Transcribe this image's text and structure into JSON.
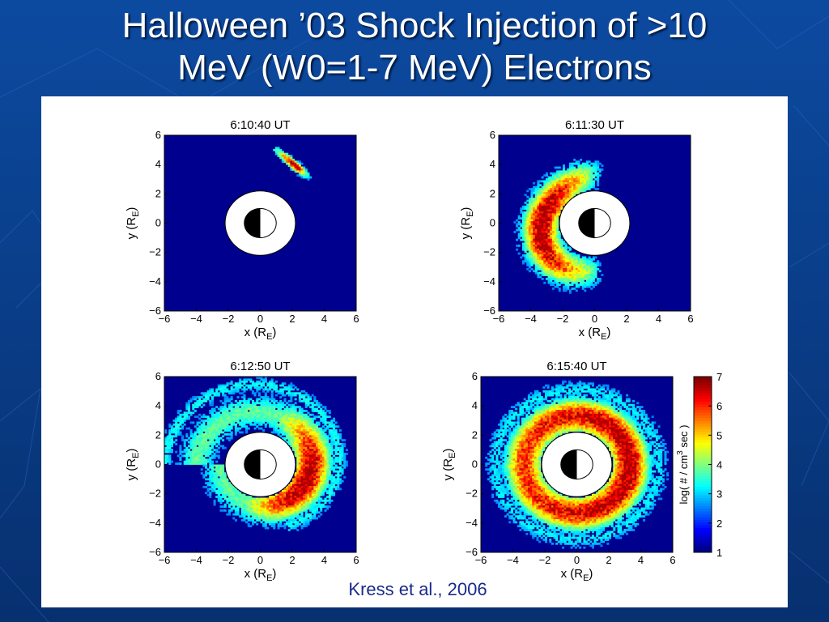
{
  "slide": {
    "title_line1": "Halloween ’03 Shock Injection of >10",
    "title_line2": "MeV (W0=1-7 MeV) Electrons",
    "citation": "Kress et al., 2006"
  },
  "colors": {
    "slide_background": "#0a3f8c",
    "plot_background": "#00008f",
    "title_text": "#ffffff",
    "citation_text": "#1a2a8c"
  },
  "chart_data": [
    {
      "type": "heatmap",
      "title": "6:10:40 UT",
      "xlabel": "x (R_E)",
      "ylabel": "y (R_E)",
      "xlim": [
        -6,
        6
      ],
      "ylim": [
        -6,
        6
      ],
      "xticks": [
        "−6",
        "−4",
        "−2",
        "0",
        "2",
        "4",
        "6"
      ],
      "yticks": [
        "6",
        "4",
        "2",
        "0",
        "−2",
        "−4",
        "−6"
      ],
      "earth_marker": {
        "inner_radius": 1,
        "exclusion_radius": 2.2,
        "note": "Earth disk half dark, white exclusion region"
      },
      "distribution": [
        {
          "x": 2.3,
          "y": 3.9,
          "angle_deg": 40,
          "radius": 1.1,
          "width": 0.35,
          "peak": 5.6
        }
      ]
    },
    {
      "type": "heatmap",
      "title": "6:11:30 UT",
      "xlabel": "x (R_E)",
      "ylabel": "y (R_E)",
      "xlim": [
        -6,
        6
      ],
      "ylim": [
        -6,
        6
      ],
      "xticks": [
        "−6",
        "−4",
        "−2",
        "0",
        "2",
        "4",
        "6"
      ],
      "yticks": [
        "6",
        "4",
        "2",
        "0",
        "−2",
        "−4",
        "−6"
      ],
      "earth_marker": {
        "inner_radius": 1,
        "exclusion_radius": 2.2
      },
      "distribution": [
        {
          "type": "crescent",
          "center_angle_deg": 180,
          "span_deg": 200,
          "radius": 3.4,
          "peak": 6.4
        }
      ]
    },
    {
      "type": "heatmap",
      "title": "6:12:50 UT",
      "xlabel": "x (R_E)",
      "ylabel": "y (R_E)",
      "xlim": [
        -6,
        6
      ],
      "ylim": [
        -6,
        6
      ],
      "xticks": [
        "−6",
        "−4",
        "−2",
        "0",
        "2",
        "4",
        "6"
      ],
      "yticks": [
        "6",
        "4",
        "2",
        "0",
        "−2",
        "−4",
        "−6"
      ],
      "earth_marker": {
        "inner_radius": 1,
        "exclusion_radius": 2.2
      },
      "distribution": [
        {
          "type": "spiral-ring",
          "radius": 3.0,
          "peak_angle_deg": -20,
          "peak": 6.6
        }
      ]
    },
    {
      "type": "heatmap",
      "title": "6:15:40 UT",
      "xlabel": "x (R_E)",
      "ylabel": "y (R_E)",
      "xlim": [
        -6,
        6
      ],
      "ylim": [
        -6,
        6
      ],
      "xticks": [
        "−6",
        "−4",
        "−2",
        "0",
        "2",
        "4",
        "6"
      ],
      "yticks": [
        "6",
        "4",
        "2",
        "0",
        "−2",
        "−4",
        "−6"
      ],
      "earth_marker": {
        "inner_radius": 1,
        "exclusion_radius": 2.2
      },
      "distribution": [
        {
          "type": "ring",
          "radius": 3.3,
          "peak": 6.5
        }
      ]
    }
  ],
  "colorbar": {
    "label": "log( # / cm^3 sec )",
    "label_parts": [
      "log( # / cm",
      "3",
      " sec )"
    ],
    "min": 1,
    "max": 7,
    "ticks": [
      1,
      2,
      3,
      4,
      5,
      6,
      7
    ],
    "colormap": "jet"
  }
}
